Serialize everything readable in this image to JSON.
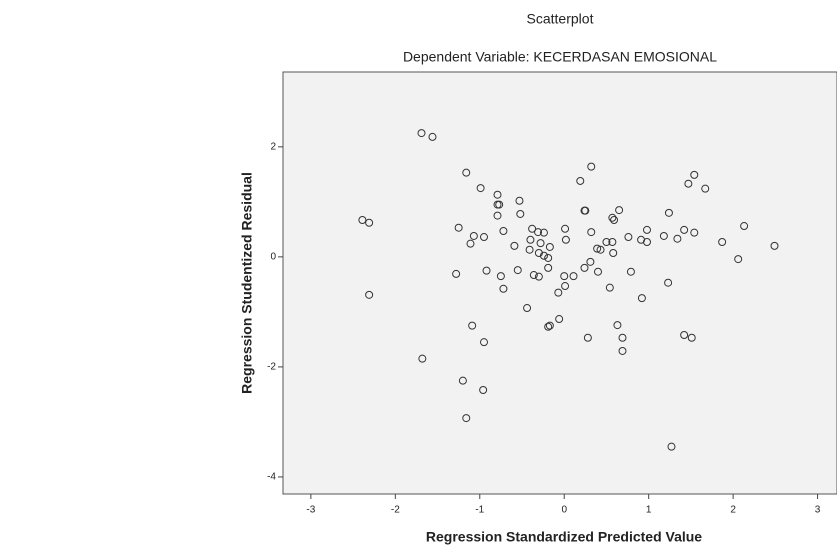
{
  "chart_data": {
    "type": "scatter",
    "title": "Scatterplot",
    "subtitle": "Dependent Variable: KECERDASAN EMOSIONAL",
    "x_label": "Regression Standardized Predicted Value",
    "y_label": "Regression Studentized Residual",
    "color": "#333333",
    "background": "#f0f0f0",
    "xlim": [
      -3.33,
      3.23
    ],
    "ylim": [
      -4.31,
      3.36
    ],
    "xticks": [
      -3,
      -2,
      -1,
      0,
      1,
      2,
      3
    ],
    "yticks": [
      -4,
      -2,
      0,
      2
    ],
    "x": [
      -1.69,
      -1.56,
      -2.39,
      -2.31,
      -2.31,
      -1.68,
      -1.16,
      -0.99,
      -0.79,
      -0.79,
      -0.77,
      -0.53,
      -0.79,
      -0.52,
      -1.25,
      -1.07,
      -0.95,
      -1.11,
      -0.72,
      -0.38,
      -0.31,
      -0.24,
      -0.4,
      -0.28,
      -0.59,
      -0.41,
      -0.3,
      -0.24,
      -0.19,
      -0.17,
      0.01,
      0.02,
      -1.28,
      -0.92,
      -0.75,
      -0.72,
      -0.55,
      -0.36,
      -0.3,
      -0.19,
      -0.44,
      -0.07,
      0.0,
      0.01,
      0.11,
      -0.06,
      -0.19,
      -0.17,
      -1.09,
      -0.95,
      -1.2,
      -0.96,
      -1.16,
      0.19,
      0.32,
      0.24,
      0.25,
      0.32,
      0.39,
      0.43,
      0.5,
      0.57,
      0.57,
      0.59,
      0.65,
      0.76,
      0.91,
      0.98,
      0.98,
      1.18,
      1.24,
      1.42,
      1.34,
      1.54,
      1.47,
      1.54,
      1.67,
      1.87,
      2.13,
      2.06,
      2.49,
      0.58,
      0.4,
      0.24,
      0.31,
      0.54,
      0.79,
      0.92,
      1.23,
      0.28,
      0.63,
      0.69,
      0.69,
      1.42,
      1.51,
      1.27
    ],
    "y": [
      2.25,
      2.18,
      0.67,
      0.62,
      -0.69,
      -1.85,
      1.53,
      1.25,
      1.13,
      0.95,
      0.95,
      1.02,
      0.75,
      0.78,
      0.53,
      0.38,
      0.36,
      0.24,
      0.47,
      0.51,
      0.45,
      0.44,
      0.31,
      0.25,
      0.2,
      0.13,
      0.07,
      0.02,
      -0.02,
      0.18,
      0.51,
      0.31,
      -0.31,
      -0.25,
      -0.35,
      -0.58,
      -0.24,
      -0.33,
      -0.36,
      -0.2,
      -0.93,
      -0.65,
      -0.35,
      -0.53,
      -0.35,
      -1.13,
      -1.27,
      -1.25,
      -1.25,
      -1.55,
      -2.25,
      -2.42,
      -2.93,
      1.38,
      1.64,
      0.84,
      0.84,
      0.45,
      0.15,
      0.13,
      0.27,
      0.27,
      0.71,
      0.67,
      0.85,
      0.36,
      0.31,
      0.49,
      0.27,
      0.38,
      0.8,
      0.49,
      0.33,
      0.44,
      1.33,
      1.49,
      1.24,
      0.27,
      0.56,
      -0.04,
      0.2,
      0.07,
      -0.27,
      -0.2,
      -0.09,
      -0.56,
      -0.27,
      -0.75,
      -0.47,
      -1.47,
      -1.24,
      -1.47,
      -1.71,
      -1.42,
      -1.47,
      -3.45
    ]
  }
}
